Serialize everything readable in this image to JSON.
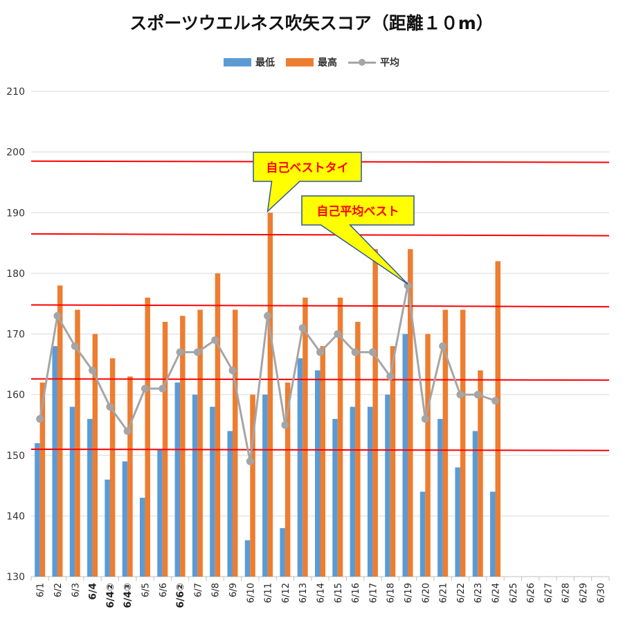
{
  "chart_data": {
    "type": "bar",
    "title": "スポーツウエルネス吹矢スコア（距離１０m）",
    "categories": [
      "6/1",
      "6/2",
      "6/3",
      "6/4",
      "6/4②",
      "6/4③",
      "6/5",
      "6/6",
      "6/6②",
      "6/7",
      "6/8",
      "6/9",
      "6/10",
      "6/11",
      "6/12",
      "6/13",
      "6/14",
      "6/15",
      "6/16",
      "6/17",
      "6/18",
      "6/19",
      "6/20",
      "6/21",
      "6/22",
      "6/23",
      "6/24",
      "6/25",
      "6/26",
      "6/27",
      "6/28",
      "6/29",
      "6/30"
    ],
    "bold_categories": [
      "6/4",
      "6/4②",
      "6/4③",
      "6/6②"
    ],
    "series": [
      {
        "name": "最低",
        "type": "bar",
        "color": "#5b9bd5",
        "values": [
          152,
          168,
          158,
          156,
          146,
          149,
          143,
          151,
          162,
          160,
          158,
          154,
          136,
          160,
          138,
          166,
          164,
          156,
          158,
          158,
          160,
          170,
          144,
          156,
          148,
          154,
          144,
          null,
          null,
          null,
          null,
          null,
          null
        ]
      },
      {
        "name": "最高",
        "type": "bar",
        "color": "#ed7d31",
        "values": [
          162,
          178,
          174,
          170,
          166,
          163,
          176,
          172,
          173,
          174,
          180,
          174,
          160,
          190,
          162,
          176,
          168,
          176,
          172,
          184,
          168,
          184,
          170,
          174,
          174,
          164,
          182,
          null,
          null,
          null,
          null,
          null,
          null
        ]
      },
      {
        "name": "平均",
        "type": "line",
        "color": "#a5a5a5",
        "values": [
          156,
          173,
          168,
          164,
          158,
          154,
          161,
          161,
          167,
          167,
          169,
          164,
          149,
          173,
          155,
          171,
          167,
          170,
          167,
          167,
          163,
          178,
          156,
          168,
          160,
          160,
          159,
          null,
          null,
          null,
          null,
          null,
          null
        ]
      }
    ],
    "ylim": [
      130,
      210
    ],
    "yticks": [
      130,
      140,
      150,
      160,
      170,
      180,
      190,
      200,
      210
    ],
    "grid": true,
    "legend_position": "top",
    "reference_lines": [
      {
        "y_start": 151,
        "y_end": 150.8,
        "color": "#ff0000"
      },
      {
        "y_start": 162.6,
        "y_end": 162.4,
        "color": "#ff0000"
      },
      {
        "y_start": 174.8,
        "y_end": 174.5,
        "color": "#ff0000"
      },
      {
        "y_start": 186.5,
        "y_end": 186.2,
        "color": "#ff0000"
      },
      {
        "y_start": 198.5,
        "y_end": 198.3,
        "color": "#ff0000"
      }
    ],
    "annotations": [
      {
        "text": "自己ベストタイ",
        "target_category": "6/11",
        "target_value": 190
      },
      {
        "text": "自己平均ベスト",
        "target_category": "6/19",
        "target_value": 178
      }
    ]
  }
}
